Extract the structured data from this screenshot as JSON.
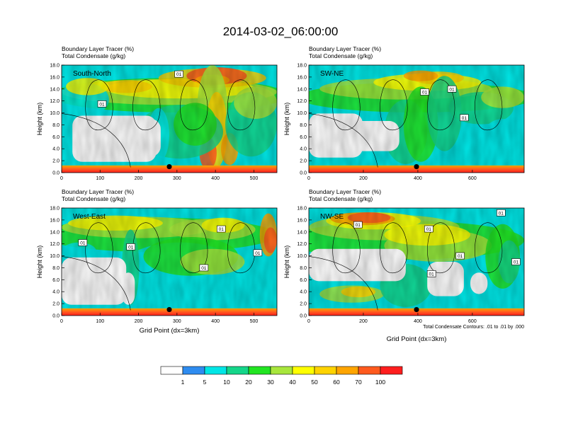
{
  "title": "2014-03-02_06:00:00",
  "footnote": "Total Condensate Contours: .01 to .01 by .000",
  "colorbar": {
    "colors": [
      "#ffffff",
      "#2e8cf0",
      "#00e6e6",
      "#14d68a",
      "#22e522",
      "#a8e63c",
      "#ffff00",
      "#ffd300",
      "#ffa500",
      "#ff5a1e",
      "#ff1e1e"
    ],
    "labels": [
      "1",
      "5",
      "10",
      "20",
      "30",
      "40",
      "50",
      "60",
      "70",
      "100"
    ]
  },
  "chart_data": [
    {
      "type": "heatmap",
      "name": "South-North",
      "title": "Boundary Layer Tracer (%)",
      "subtitle": "Total Condensate (g/kg)",
      "ylabel": "Height (km)",
      "xlabel": "",
      "xlim": [
        0,
        560
      ],
      "ylim": [
        0,
        18
      ],
      "xticks": [
        "0",
        "100",
        "200",
        "300",
        "400",
        "500"
      ],
      "xtick_values": [
        0,
        100,
        200,
        300,
        400,
        500
      ],
      "yticks": [
        "0.0",
        "2.0",
        "4.0",
        "6.0",
        "8.0",
        "10.0",
        "12.0",
        "14.0",
        "16.0",
        "18.0"
      ],
      "contour_labels": [
        {
          "text": "01",
          "x": 305,
          "y": 16.5
        },
        {
          "text": "01",
          "x": 105,
          "y": 11.5
        }
      ],
      "markers": [
        {
          "x": 280,
          "y": 1.0
        }
      ]
    },
    {
      "type": "heatmap",
      "name": "SW-NE",
      "title": "Boundary Layer Tracer (%)",
      "subtitle": "Total Condensate (g/kg)",
      "ylabel": "Height (km)",
      "xlabel": "",
      "xlim": [
        0,
        790
      ],
      "ylim": [
        0,
        18
      ],
      "xticks": [
        "0",
        "200",
        "400",
        "600"
      ],
      "xtick_values": [
        0,
        200,
        400,
        600
      ],
      "yticks": [
        "0.0",
        "2.0",
        "4.0",
        "6.0",
        "8.0",
        "10.0",
        "12.0",
        "14.0",
        "16.0",
        "18.0"
      ],
      "contour_labels": [
        {
          "text": "01",
          "x": 425,
          "y": 13.5
        },
        {
          "text": "01",
          "x": 525,
          "y": 14.0
        },
        {
          "text": "01",
          "x": 570,
          "y": 9.2
        }
      ],
      "markers": [
        {
          "x": 395,
          "y": 1.0
        }
      ]
    },
    {
      "type": "heatmap",
      "name": "West-East",
      "title": "Boundary Layer Tracer (%)",
      "subtitle": "Total Condensate (g/kg)",
      "ylabel": "Height (km)",
      "xlabel": "Grid Point (dx=3km)",
      "xlim": [
        0,
        560
      ],
      "ylim": [
        0,
        18
      ],
      "xticks": [
        "0",
        "100",
        "200",
        "300",
        "400",
        "500"
      ],
      "xtick_values": [
        0,
        100,
        200,
        300,
        400,
        500
      ],
      "yticks": [
        "0.0",
        "2.0",
        "4.0",
        "6.0",
        "8.0",
        "10.0",
        "12.0",
        "14.0",
        "16.0",
        "18.0"
      ],
      "contour_labels": [
        {
          "text": "01",
          "x": 55,
          "y": 12.2
        },
        {
          "text": "01",
          "x": 180,
          "y": 11.5
        },
        {
          "text": "01",
          "x": 415,
          "y": 14.5
        },
        {
          "text": "01",
          "x": 510,
          "y": 10.5
        },
        {
          "text": "01",
          "x": 370,
          "y": 8.0
        }
      ],
      "markers": [
        {
          "x": 280,
          "y": 1.0
        }
      ]
    },
    {
      "type": "heatmap",
      "name": "NW-SE",
      "title": "Boundary Layer Tracer (%)",
      "subtitle": "Total Condensate (g/kg)",
      "ylabel": "Height (km)",
      "xlabel": "Grid Point (dx=3km)",
      "xlim": [
        0,
        790
      ],
      "ylim": [
        0,
        18
      ],
      "xticks": [
        "0",
        "200",
        "400",
        "600"
      ],
      "xtick_values": [
        0,
        200,
        400,
        600
      ],
      "yticks": [
        "0.0",
        "2.0",
        "4.0",
        "6.0",
        "8.0",
        "10.0",
        "12.0",
        "14.0",
        "16.0",
        "18.0"
      ],
      "contour_labels": [
        {
          "text": "01",
          "x": 180,
          "y": 15.2
        },
        {
          "text": "01",
          "x": 440,
          "y": 14.5
        },
        {
          "text": "01",
          "x": 450,
          "y": 7.0
        },
        {
          "text": "01",
          "x": 555,
          "y": 10.0
        },
        {
          "text": "01",
          "x": 705,
          "y": 17.2
        },
        {
          "text": "01",
          "x": 760,
          "y": 9.0
        }
      ],
      "markers": [
        {
          "x": 395,
          "y": 1.0
        }
      ]
    }
  ]
}
